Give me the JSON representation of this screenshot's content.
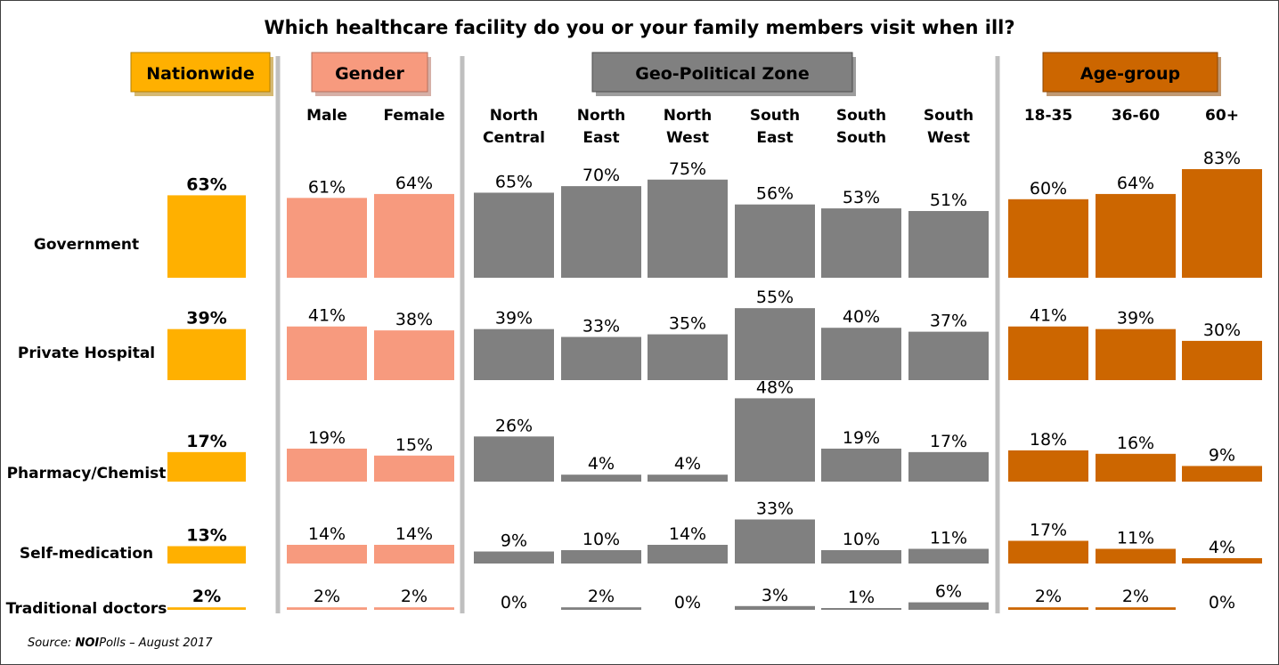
{
  "title": "Which healthcare facility do you or your family members visit when ill?",
  "source": {
    "prefix": "Source: ",
    "org": "NOI",
    "rest": "Polls – August 2017"
  },
  "chart_data": {
    "type": "bar",
    "title": "Which healthcare facility do you or your family members visit when ill?",
    "rows": [
      "Government",
      "Private Hospital",
      "Pharmacy/Chemist",
      "Self-medication",
      "Traditional doctors"
    ],
    "groups": [
      {
        "name": "Nationwide",
        "color": "#FFB000",
        "columns": [
          {
            "label": "",
            "values": [
              63,
              39,
              17,
              13,
              2
            ]
          }
        ]
      },
      {
        "name": "Gender",
        "color": "#F79A7E",
        "columns": [
          {
            "label": "Male",
            "values": [
              61,
              41,
              19,
              14,
              2
            ]
          },
          {
            "label": "Female",
            "values": [
              64,
              38,
              15,
              14,
              2
            ]
          }
        ]
      },
      {
        "name": "Geo-Political Zone",
        "color": "#808080",
        "columns": [
          {
            "label": "North Central",
            "values": [
              65,
              39,
              26,
              9,
              0
            ]
          },
          {
            "label": "North East",
            "values": [
              70,
              33,
              4,
              10,
              2
            ]
          },
          {
            "label": "North West",
            "values": [
              75,
              35,
              4,
              14,
              0
            ]
          },
          {
            "label": "South East",
            "values": [
              56,
              55,
              48,
              33,
              3
            ]
          },
          {
            "label": "South South",
            "values": [
              53,
              40,
              19,
              10,
              1
            ]
          },
          {
            "label": "South West",
            "values": [
              51,
              37,
              17,
              11,
              6
            ]
          }
        ]
      },
      {
        "name": "Age-group",
        "color": "#CC6600",
        "columns": [
          {
            "label": "18-35",
            "values": [
              60,
              41,
              18,
              17,
              2
            ]
          },
          {
            "label": "36-60",
            "values": [
              64,
              39,
              16,
              11,
              2
            ]
          },
          {
            "label": "60+",
            "values": [
              83,
              30,
              9,
              4,
              0
            ]
          }
        ]
      }
    ],
    "value_suffix": "%"
  }
}
